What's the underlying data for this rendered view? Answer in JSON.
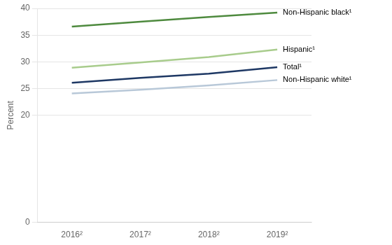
{
  "chart_data": {
    "type": "line",
    "categories": [
      "2016²",
      "2017²",
      "2018²",
      "2019²"
    ],
    "series": [
      {
        "name": "Non-Hispanic black¹",
        "color": "#4e8a3e",
        "values": [
          36.6,
          37.5,
          38.4,
          39.2
        ]
      },
      {
        "name": "Hispanic¹",
        "color": "#a8cc8c",
        "values": [
          28.9,
          29.9,
          30.9,
          32.3
        ]
      },
      {
        "name": "Total¹",
        "color": "#1e3864",
        "values": [
          26.1,
          27.0,
          27.8,
          29.0
        ]
      },
      {
        "name": "Non-Hispanic white¹",
        "color": "#b8c8d8",
        "values": [
          24.1,
          24.8,
          25.6,
          26.6
        ]
      }
    ],
    "ylabel": "Percent",
    "ylim": [
      0,
      40
    ],
    "yticks": [
      0,
      20,
      25,
      30,
      35,
      40
    ],
    "grid": true
  }
}
